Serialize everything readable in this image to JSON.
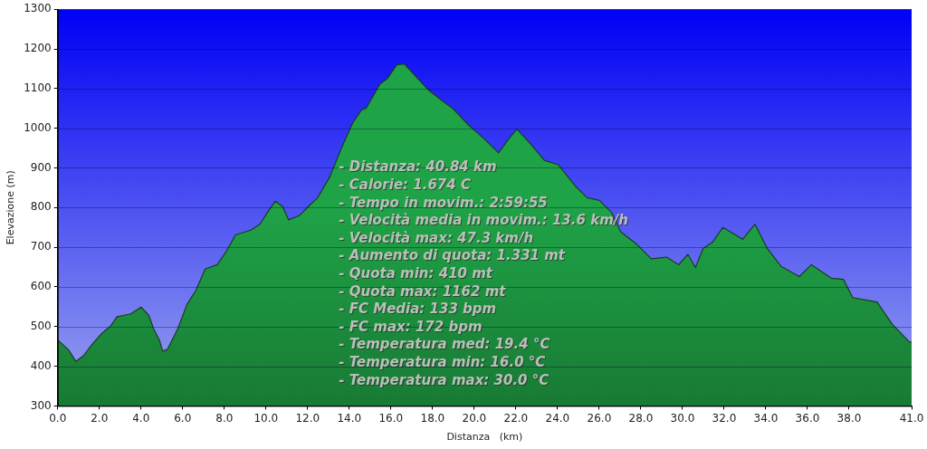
{
  "chart_data": {
    "type": "area",
    "xlabel": "Distanza   (km)",
    "ylabel": "Elevazione (m)",
    "x": [
      0,
      0.51,
      0.88,
      1.24,
      1.68,
      2.12,
      2.55,
      2.85,
      3.14,
      3.5,
      4.01,
      4.38,
      4.6,
      4.89,
      5.04,
      5.26,
      5.77,
      6.2,
      6.64,
      7.08,
      7.66,
      8.1,
      8.54,
      9.27,
      9.71,
      10.07,
      10.44,
      10.8,
      11.09,
      11.61,
      12.04,
      12.48,
      13.07,
      13.65,
      14.16,
      14.6,
      14.82,
      15.47,
      15.84,
      16.28,
      16.64,
      17.15,
      17.81,
      18.47,
      18.97,
      19.71,
      20.44,
      21.17,
      21.68,
      22.05,
      22.64,
      23.37,
      24.03,
      24.84,
      25.42,
      26.01,
      26.59,
      27.03,
      27.77,
      28.5,
      29.23,
      29.82,
      30.26,
      30.62,
      30.99,
      31.43,
      31.94,
      32.89,
      33.48,
      34.07,
      34.73,
      35.61,
      36.19,
      37.14,
      37.73,
      38.17,
      38.9,
      39.34,
      40.07,
      40.9,
      41
    ],
    "series": [
      {
        "color": "#1fa347",
        "values": [
          466,
          442,
          412,
          427,
          457,
          483,
          502,
          525,
          528,
          532,
          549,
          528,
          495,
          465,
          438,
          442,
          495,
          555,
          592,
          645,
          656,
          690,
          731,
          743,
          758,
          788,
          816,
          803,
          769,
          780,
          803,
          825,
          878,
          953,
          1013,
          1047,
          1051,
          1111,
          1126,
          1160,
          1162,
          1133,
          1096,
          1069,
          1050,
          1009,
          975,
          938,
          975,
          998,
          964,
          919,
          908,
          855,
          825,
          818,
          788,
          739,
          709,
          671,
          675,
          656,
          682,
          649,
          697,
          712,
          750,
          720,
          758,
          697,
          652,
          626,
          656,
          622,
          619,
          573,
          566,
          562,
          506,
          461,
          461
        ]
      }
    ],
    "xlim": [
      0,
      41
    ],
    "xticks": [
      {
        "value": 0,
        "label": "0.0"
      },
      {
        "value": 2,
        "label": "2.0"
      },
      {
        "value": 4,
        "label": "4.0"
      },
      {
        "value": 6,
        "label": "6.0"
      },
      {
        "value": 8,
        "label": "8.0"
      },
      {
        "value": 10,
        "label": "10.0"
      },
      {
        "value": 12,
        "label": "12.0"
      },
      {
        "value": 14,
        "label": "14.0"
      },
      {
        "value": 16,
        "label": "16.0"
      },
      {
        "value": 18,
        "label": "18.0"
      },
      {
        "value": 20,
        "label": "20.0"
      },
      {
        "value": 22,
        "label": "22.0"
      },
      {
        "value": 24,
        "label": "24.0"
      },
      {
        "value": 26,
        "label": "26.0"
      },
      {
        "value": 28,
        "label": "28.0"
      },
      {
        "value": 30,
        "label": "30.0"
      },
      {
        "value": 32,
        "label": "32.0"
      },
      {
        "value": 34,
        "label": "34.0"
      },
      {
        "value": 36,
        "label": "36.0"
      },
      {
        "value": 38,
        "label": "38.0"
      },
      {
        "value": 41,
        "label": "41.0"
      }
    ],
    "ylim": [
      300,
      1300
    ],
    "yticks": [
      300,
      400,
      500,
      600,
      700,
      800,
      900,
      1000,
      1100,
      1200,
      1300
    ],
    "grid": "y",
    "legend": false,
    "marker": "none",
    "line_style": "solid",
    "annotations": [
      "- Distanza: 40.84 km",
      "- Calorie: 1.674 C",
      "- Tempo in movim.: 2:59:55",
      "- Velocità media in movim.: 13.6 km/h",
      "- Velocità max: 47.3 km/h",
      "- Aumento di quota: 1.331 mt",
      "- Quota min: 410 mt",
      "- Quota max: 1162 mt",
      "- FC Media: 133 bpm",
      "- FC max: 172 bpm",
      "- Temperatura med: 19.4 °C",
      "- Temperatura min: 16.0 °C",
      "- Temperatura max: 30.0 °C"
    ]
  }
}
